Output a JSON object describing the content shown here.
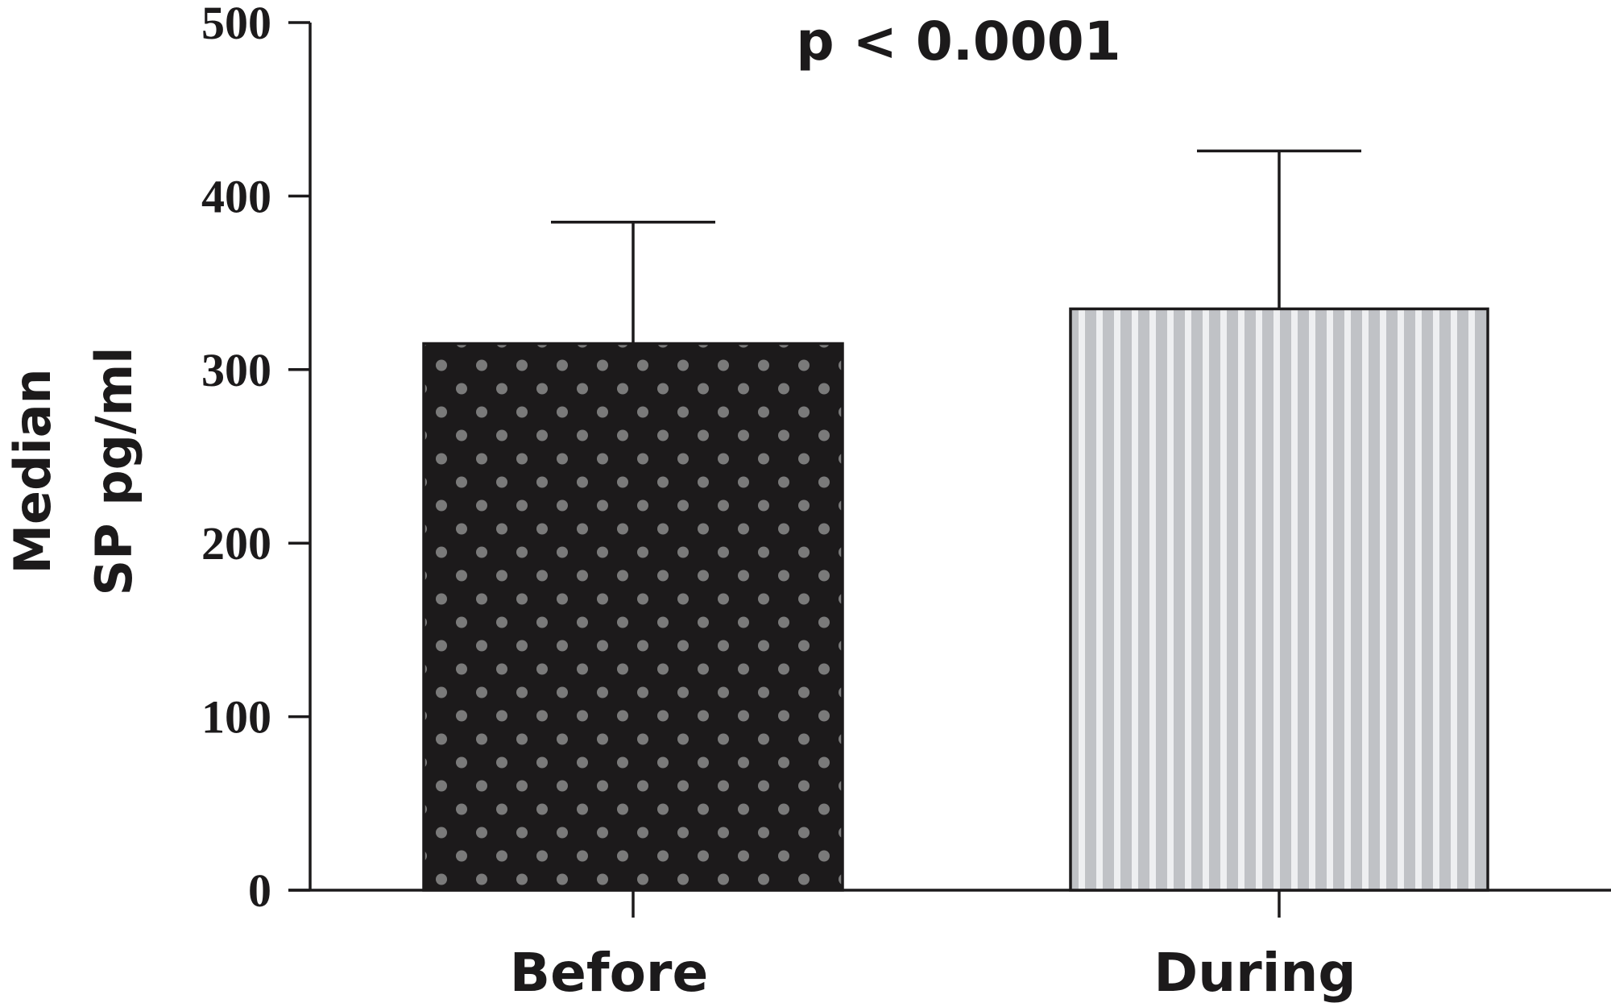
{
  "chart_data": {
    "type": "bar",
    "title": "",
    "annotation": "p < 0.0001",
    "ylabel_lines": [
      "Median",
      "SP pg/ml"
    ],
    "xlabel": "",
    "ylim": [
      0,
      500
    ],
    "yticks": [
      0,
      100,
      200,
      300,
      400,
      500
    ],
    "categories": [
      "Before",
      "During"
    ],
    "series": [
      {
        "values": [
          315,
          335
        ],
        "error_upper": [
          385,
          426
        ],
        "fills": [
          "#1c1a1b",
          "#c0c2c6"
        ],
        "patterns": [
          "dots",
          "vertical-stripes"
        ]
      }
    ],
    "grid": false,
    "legend": "none",
    "colors": {
      "axis": "#1c1a1b",
      "before_bar": "#1c1a1b",
      "before_dots": "#7a7a7a",
      "during_bar": "#c0c2c6",
      "during_stripes": "#eeeff1"
    }
  }
}
